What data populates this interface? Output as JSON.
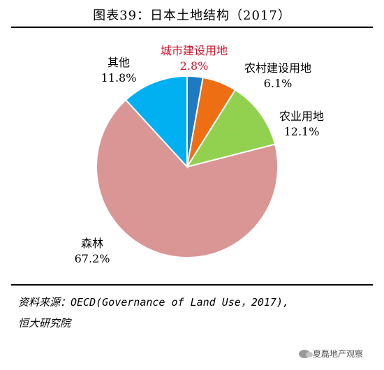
{
  "header": {
    "title": "图表39：日本土地结构（2017）"
  },
  "chart_data": {
    "type": "pie",
    "title": "图表39：日本土地结构（2017）",
    "slices": [
      {
        "label": "城市建设用地",
        "value": 2.8,
        "display": "2.8%",
        "color": "#1f7bc1",
        "label_color": "#d0142c"
      },
      {
        "label": "农村建设用地",
        "value": 6.1,
        "display": "6.1%",
        "color": "#ee6e14",
        "label_color": "#000000"
      },
      {
        "label": "农业用地",
        "value": 12.1,
        "display": "12.1%",
        "color": "#92d050",
        "label_color": "#000000"
      },
      {
        "label": "森林",
        "value": 67.2,
        "display": "67.2%",
        "color": "#d99694",
        "label_color": "#000000"
      },
      {
        "label": "其他",
        "value": 11.8,
        "display": "11.8%",
        "color": "#00b0f0",
        "label_color": "#000000"
      }
    ],
    "start": "12 o'clock",
    "direction": "clockwise",
    "legend": "none"
  },
  "footer": {
    "source_line1": "资料来源：OECD(Governance of Land Use，2017),",
    "source_line2": "恒大研究院"
  },
  "watermark": {
    "text": "夏磊地产观察"
  }
}
